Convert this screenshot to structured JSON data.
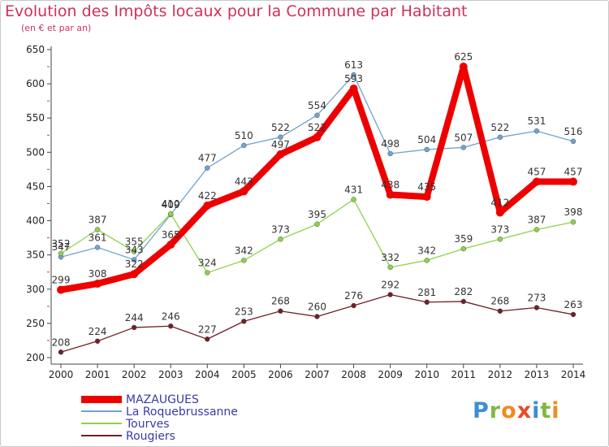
{
  "header": {
    "title": "Evolution des Impôts locaux pour la Commune par Habitant",
    "subtitle": "(en € et par an)"
  },
  "logo": {
    "letters": [
      "P",
      "r",
      "o",
      "x",
      "i",
      "t",
      "i"
    ],
    "colors": [
      "#3b8fd1",
      "#7fb842",
      "#f28a1d",
      "#e84b2c",
      "#3b8fd1",
      "#7fb842",
      "#f28a1d"
    ]
  },
  "colors": {
    "title": "#d0305a",
    "legend_text": "#3a3aa8",
    "axis": "#444444",
    "grid_tick": "#d3304f"
  },
  "chart_data": {
    "type": "line",
    "title": "Evolution des Impôts locaux pour la Commune par Habitant",
    "subtitle": "(en € et par an)",
    "xlabel": "",
    "ylabel": "",
    "x": [
      "2000",
      "2001",
      "2002",
      "2003",
      "2004",
      "2005",
      "2006",
      "2007",
      "2008",
      "2009",
      "2010",
      "2011",
      "2012",
      "2013",
      "2014"
    ],
    "ylim": [
      200,
      650
    ],
    "yticks": [
      200,
      250,
      300,
      350,
      400,
      450,
      500,
      550,
      600,
      650
    ],
    "grid": false,
    "legend_position": "bottom-left",
    "series": [
      {
        "name": "MAZAUGUES",
        "color": "#ee0000",
        "width": "thick",
        "values": [
          299,
          308,
          322,
          365,
          422,
          443,
          497,
          522,
          593,
          438,
          435,
          625,
          412,
          457,
          457
        ]
      },
      {
        "name": "La Roquebrussanne",
        "color": "#6fa4cf",
        "width": "thin",
        "values": [
          347,
          361,
          343,
          409,
          477,
          510,
          522,
          554,
          613,
          498,
          504,
          507,
          522,
          531,
          516
        ]
      },
      {
        "name": "Tourves",
        "color": "#8ed24a",
        "width": "thin",
        "values": [
          352,
          387,
          355,
          410,
          324,
          342,
          373,
          395,
          431,
          332,
          342,
          359,
          373,
          387,
          398
        ]
      },
      {
        "name": "Rougiers",
        "color": "#6e2127",
        "width": "thin",
        "values": [
          208,
          224,
          244,
          246,
          227,
          253,
          268,
          260,
          276,
          292,
          281,
          282,
          268,
          273,
          263
        ]
      }
    ]
  }
}
